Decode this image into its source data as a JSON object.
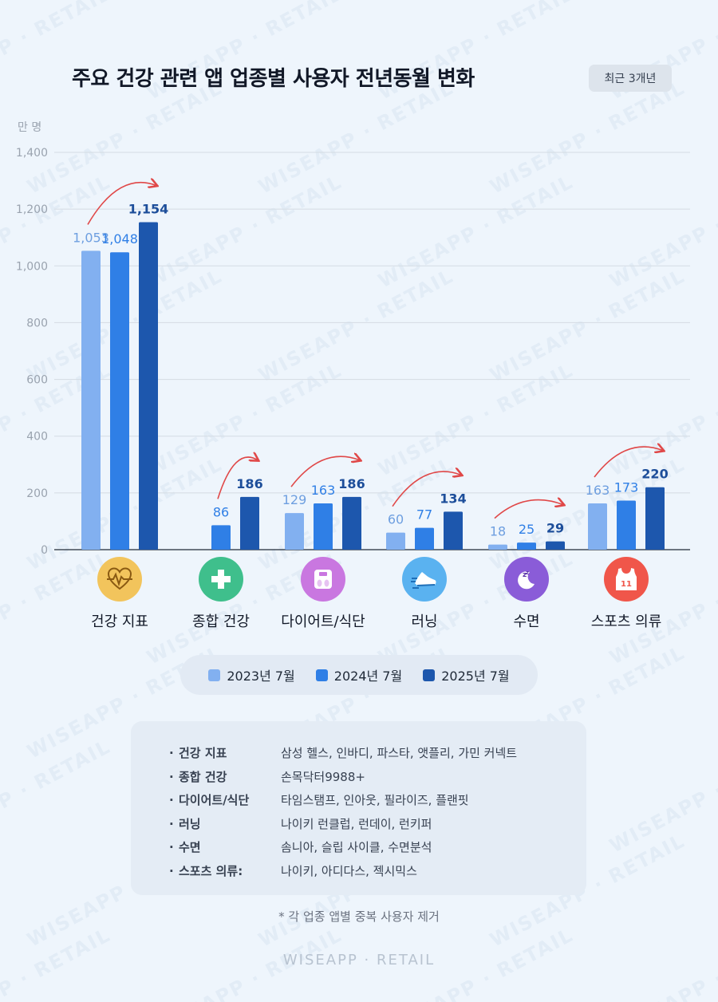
{
  "header": {
    "title": "주요 건강 관련 앱 업종별 사용자 전년동월 변화",
    "period_badge": "최근 3개년"
  },
  "colors": {
    "series_2023": "#82b0f0",
    "series_2024": "#2f7fe6",
    "series_2025": "#1d57ad",
    "arrow": "#e04848",
    "label_2023": "#6e9fe0",
    "label_2024": "#2f7fe6",
    "label_2025": "#1d4e9a"
  },
  "chart_data": {
    "type": "bar",
    "unit_label": "만 명",
    "ylim": [
      0,
      1400
    ],
    "yticks": [
      "0",
      "200",
      "400",
      "600",
      "800",
      "1,000",
      "1,200",
      "1,400"
    ],
    "grid": true,
    "categories": [
      "건강 지표",
      "종합 건강",
      "다이어트/식단",
      "러닝",
      "수면",
      "스포츠 의류"
    ],
    "series": [
      {
        "name": "2023년 7월",
        "values": [
          1053,
          null,
          129,
          60,
          18,
          163
        ],
        "labels": [
          "1,053",
          "",
          "129",
          "60",
          "18",
          "163"
        ]
      },
      {
        "name": "2024년 7월",
        "values": [
          1048,
          86,
          163,
          77,
          25,
          173
        ],
        "labels": [
          "1,048",
          "86",
          "163",
          "77",
          "25",
          "173"
        ]
      },
      {
        "name": "2025년 7월",
        "values": [
          1154,
          186,
          186,
          134,
          29,
          220
        ],
        "labels": [
          "1,154",
          "186",
          "186",
          "134",
          "29",
          "220"
        ]
      }
    ],
    "legend_position": "bottom"
  },
  "category_icons": [
    {
      "icon": "heart-pulse-icon",
      "bg": "#f2c45c"
    },
    {
      "icon": "medical-cross-icon",
      "bg": "#3fbf8c"
    },
    {
      "icon": "scale-icon",
      "bg": "#c977e0"
    },
    {
      "icon": "running-shoe-icon",
      "bg": "#5ab2f0"
    },
    {
      "icon": "moon-sleep-icon",
      "bg": "#8a5cd8"
    },
    {
      "icon": "jersey-icon",
      "bg": "#f0564a"
    }
  ],
  "legend": {
    "items": [
      "2023년 7월",
      "2024년 7월",
      "2025년 7월"
    ]
  },
  "notes": {
    "bullet": "·",
    "rows": [
      {
        "category": "건강 지표",
        "apps": "삼성 헬스, 인바디, 파스타, 앳플리, 가민 커넥트"
      },
      {
        "category": "종합 건강",
        "apps": "손목닥터9988+"
      },
      {
        "category": "다이어트/식단",
        "apps": "타임스탬프, 인아웃, 필라이즈, 플랜핏"
      },
      {
        "category": "러닝",
        "apps": "나이키 런클럽, 런데이, 런키퍼"
      },
      {
        "category": "수면",
        "apps": "솜니아, 슬립 사이클, 수면분석"
      },
      {
        "category": "스포츠 의류:",
        "apps": "나이키, 아디다스, 젝시믹스"
      }
    ]
  },
  "footnote": "* 각 업종 앱별 중복 사용자 제거",
  "watermark": "WISEAPP · RETAIL",
  "brand": "WISEAPP · RETAIL"
}
